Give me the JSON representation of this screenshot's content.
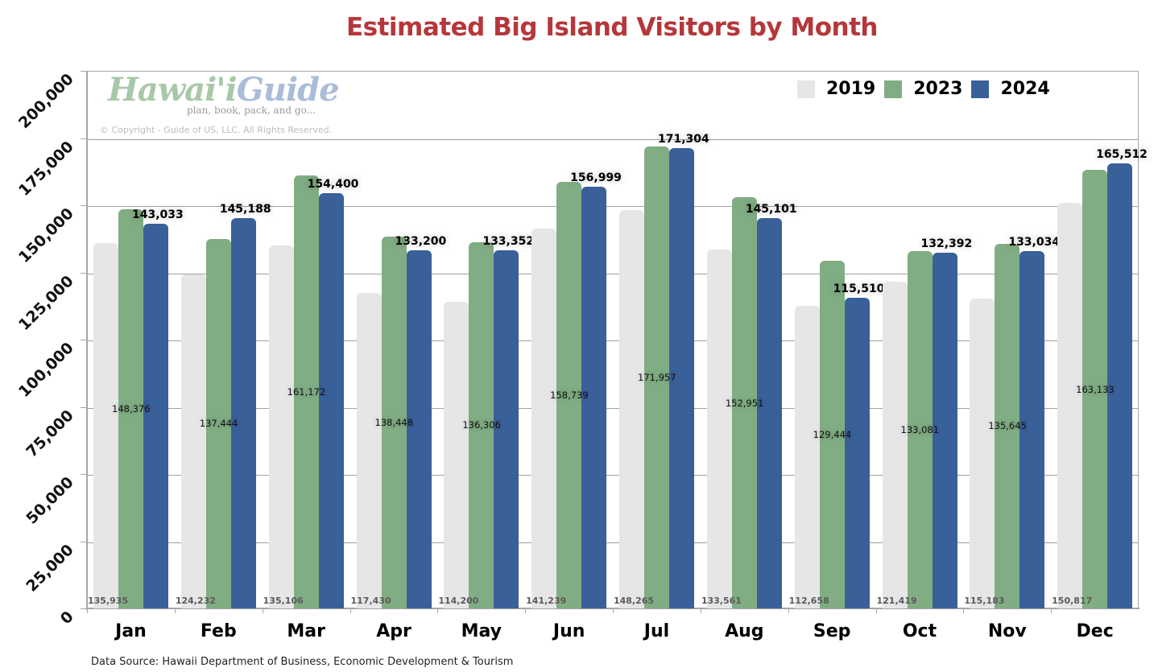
{
  "chart_data": {
    "type": "bar",
    "title": "Estimated Big Island Visitors by Month",
    "title_color": "#b5373b",
    "xlabel": "",
    "ylabel": "",
    "ylim": [
      0,
      200000
    ],
    "yticks": [
      0,
      25000,
      50000,
      75000,
      100000,
      125000,
      150000,
      175000,
      200000
    ],
    "ytick_labels": [
      "0",
      "25,000",
      "50,000",
      "75,000",
      "100,000",
      "125,000",
      "150,000",
      "175,000",
      "200,000"
    ],
    "grid": true,
    "legend_position": "top-right",
    "categories": [
      "Jan",
      "Feb",
      "Mar",
      "Apr",
      "May",
      "Jun",
      "Jul",
      "Aug",
      "Sep",
      "Oct",
      "Nov",
      "Dec"
    ],
    "series": [
      {
        "name": "2019",
        "color": "#e6e6e6",
        "values": [
          135935,
          124232,
          135106,
          117430,
          114200,
          141239,
          148265,
          133561,
          112658,
          121419,
          115183,
          150817
        ],
        "labels": [
          "135,935",
          "124,232",
          "135,106",
          "117,430",
          "114,200",
          "141,239",
          "148,265",
          "133,561",
          "112,658",
          "121,419",
          "115,183",
          "150,817"
        ]
      },
      {
        "name": "2023",
        "color": "#80ad84",
        "values": [
          148376,
          137444,
          161172,
          138448,
          136306,
          158739,
          171957,
          152951,
          129444,
          133081,
          135645,
          163133
        ],
        "labels": [
          "148,376",
          "137,444",
          "161,172",
          "138,448",
          "136,306",
          "158,739",
          "171,957",
          "152,951",
          "129,444",
          "133,081",
          "135,645",
          "163,133"
        ]
      },
      {
        "name": "2024",
        "color": "#3a6099",
        "values": [
          143033,
          145188,
          154400,
          133200,
          133352,
          156999,
          171304,
          145101,
          115510,
          132392,
          133034,
          165512
        ],
        "labels": [
          "143,033",
          "145,188",
          "154,400",
          "133,200",
          "133,352",
          "156,999",
          "171,304",
          "145,101",
          "115,510",
          "132,392",
          "133,034",
          "165,512"
        ]
      }
    ]
  },
  "logo": {
    "part1": "Hawai'i",
    "part2": "Guide",
    "tagline": "plan, book, pack, and go..."
  },
  "copyright": "© Copyright - Guide of US, LLC. All Rights Reserved.",
  "source": "Data Source: Hawaii Department of Business, Economic Development & Tourism"
}
